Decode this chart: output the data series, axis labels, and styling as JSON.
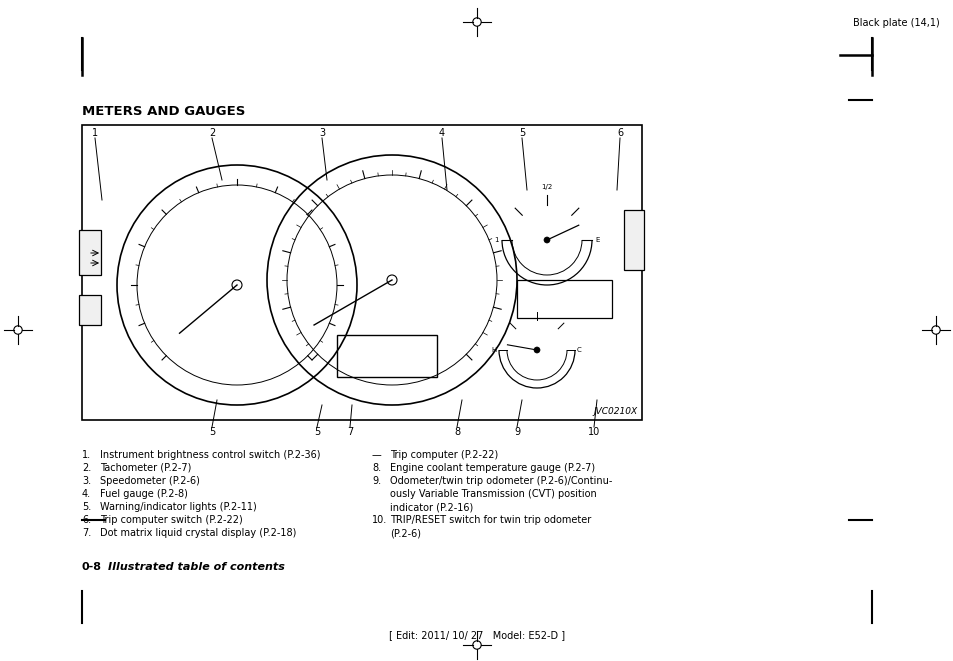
{
  "bg_color": "#ffffff",
  "title": "METERS AND GAUGES",
  "header_right": "Black plate (14,1)",
  "footer_center": "[ Edit: 2011/ 10/ 27   Model: E52-D ]",
  "image_label": "JVC0210X",
  "list_left": [
    [
      "1.",
      "Instrument brightness control switch (P.2-36)"
    ],
    [
      "2.",
      "Tachometer (P.2-7)"
    ],
    [
      "3.",
      "Speedometer (P.2-6)"
    ],
    [
      "4.",
      "Fuel gauge (P.2-8)"
    ],
    [
      "5.",
      "Warning/indicator lights (P.2-11)"
    ],
    [
      "6.",
      "Trip computer switch (P.2-22)"
    ],
    [
      "7.",
      "Dot matrix liquid crystal display (P.2-18)"
    ]
  ],
  "list_right": [
    [
      "—",
      "Trip computer (P.2-22)"
    ],
    [
      "8.",
      "Engine coolant temperature gauge (P.2-7)"
    ],
    [
      "9.",
      "Odometer/twin trip odometer (P.2-6)/Continu-\nously Variable Transmission (CVT) position\nindicator (P.2-16)"
    ],
    [
      "10.",
      "TRIP/RESET switch for twin trip odometer\n(P.2-6)"
    ]
  ]
}
